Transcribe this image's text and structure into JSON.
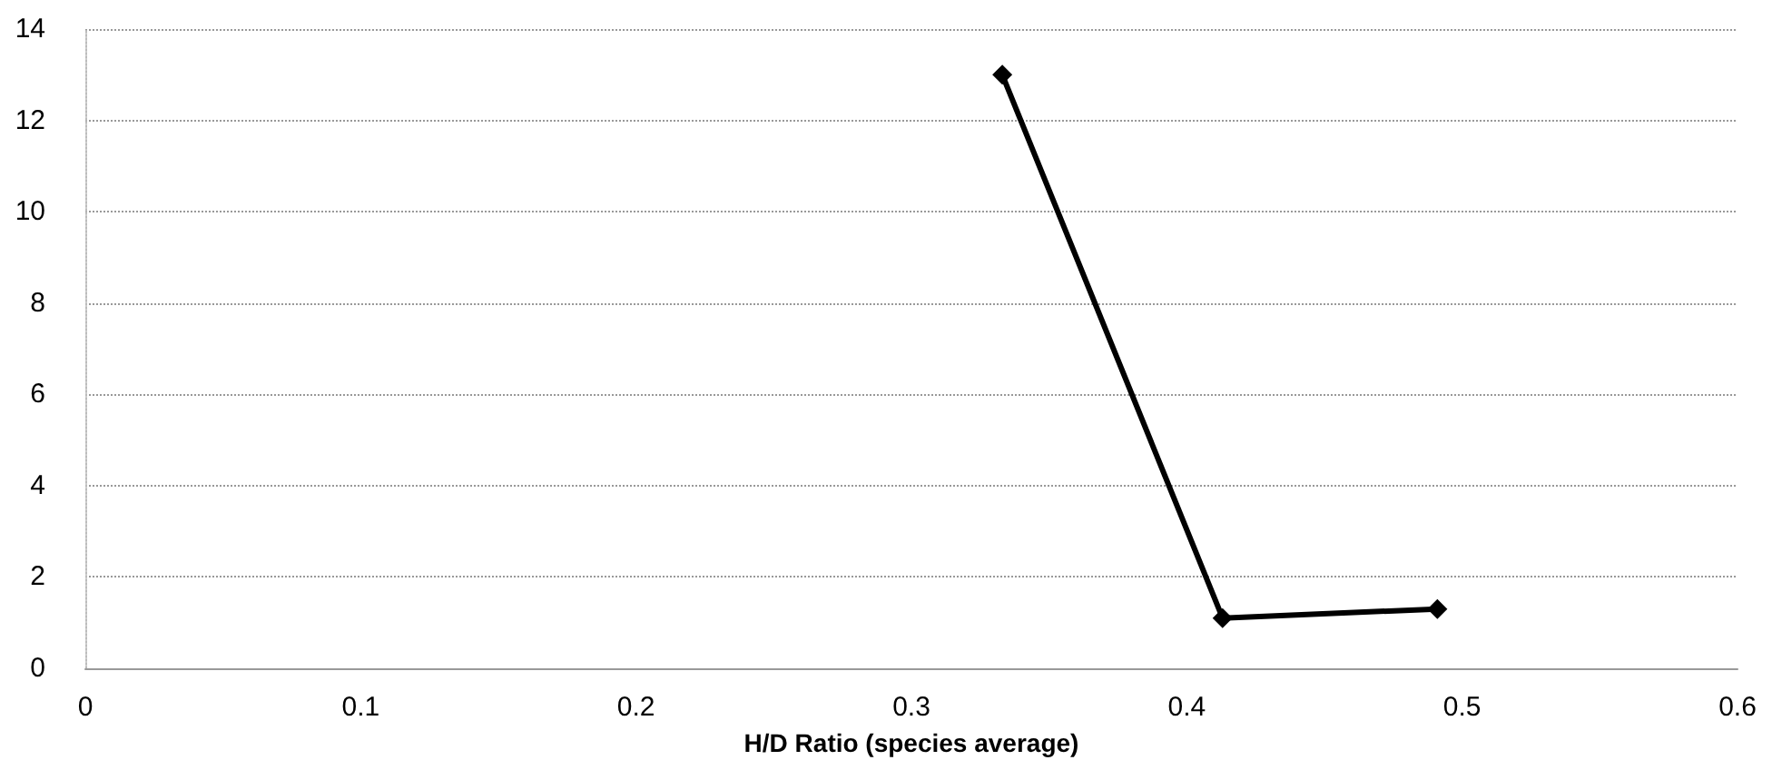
{
  "chart_data": {
    "type": "line",
    "xlabel": "H/D Ratio (species average)",
    "x": [
      0.333,
      0.413,
      0.491
    ],
    "series": [
      {
        "color": "#000000",
        "values": [
          13,
          1.1,
          1.3
        ]
      }
    ],
    "xlim": [
      0,
      0.6
    ],
    "xticks": [
      0,
      0.1,
      0.2,
      0.3,
      0.4,
      0.5,
      0.6
    ],
    "ylim": [
      0,
      14
    ],
    "yticks": [
      0,
      2,
      4,
      6,
      8,
      10,
      12,
      14
    ],
    "grid": "y",
    "marker": "diamond",
    "line_style": "solid"
  }
}
